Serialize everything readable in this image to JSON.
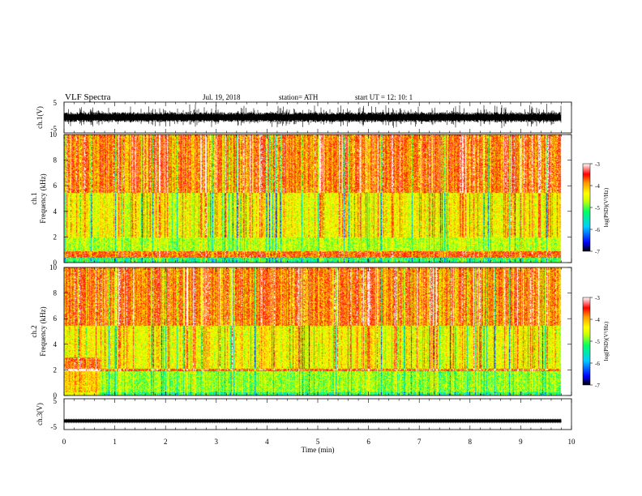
{
  "header": {
    "title": "VLF  Spectra",
    "date": "Jul.  19, 2018",
    "station": "station= ATH",
    "start": "start  UT  =    12: 10: 1"
  },
  "chart_data": [
    {
      "type": "line",
      "panel": "ch1-waveform",
      "ylabel": "ch.1(V)",
      "ylim": [
        -5,
        5
      ],
      "yticks": [
        "5",
        "-5"
      ],
      "xlim": [
        0,
        10
      ],
      "data_end_min": 9.8,
      "typical_amplitude_V": [
        -1.5,
        1.8
      ],
      "peak_amplitude_V": [
        -3.5,
        4.5
      ],
      "grid": false
    },
    {
      "type": "heatmap",
      "panel": "ch1-spectrogram",
      "ylabel": "ch.1\nFrequency (kHz)",
      "xlim": [
        0,
        10
      ],
      "ylim": [
        0,
        10
      ],
      "yticks": [
        "0",
        "2",
        "4",
        "6",
        "8",
        "10"
      ],
      "data_end_min": 9.8,
      "colorbar": {
        "label": "log(PSD)(V²/Hz)",
        "range": [
          -7,
          -3
        ],
        "ticks": [
          "-3",
          "-4",
          "-5",
          "-6",
          "-7"
        ],
        "colormap": [
          "#000000",
          "#0000ff",
          "#00ccff",
          "#00ff66",
          "#ccff00",
          "#ffff00",
          "#ff9900",
          "#ff0000",
          "#ffffff"
        ]
      },
      "bands": [
        {
          "range_kHz": [
            0,
            0.4
          ],
          "log_psd": -5.5
        },
        {
          "range_kHz": [
            0.4,
            0.9
          ],
          "log_psd": -3.8
        },
        {
          "range_kHz": [
            0.9,
            2.0
          ],
          "log_psd": -5.0
        },
        {
          "range_kHz": [
            2.0,
            5.5
          ],
          "log_psd": -4.6
        },
        {
          "range_kHz": [
            5.5,
            10
          ],
          "log_psd": -3.9
        }
      ]
    },
    {
      "type": "heatmap",
      "panel": "ch2-spectrogram",
      "ylabel": "ch.2\nFrequency (kHz)",
      "xlim": [
        0,
        10
      ],
      "ylim": [
        0,
        10
      ],
      "yticks": [
        "0",
        "2",
        "4",
        "6",
        "8",
        "10"
      ],
      "data_end_min": 9.8,
      "colorbar": {
        "label": "log(PSD)(V²/Hz)",
        "range": [
          -7,
          -3
        ],
        "ticks": [
          "-3",
          "-4",
          "-5",
          "-6",
          "-7"
        ],
        "colormap": [
          "#000000",
          "#0000ff",
          "#00ccff",
          "#00ff66",
          "#ccff00",
          "#ffff00",
          "#ff9900",
          "#ff0000",
          "#ffffff"
        ]
      },
      "bands": [
        {
          "range_kHz": [
            0,
            0.3
          ],
          "log_psd": -5.5
        },
        {
          "range_kHz": [
            0.3,
            1.9
          ],
          "log_psd": -5.1
        },
        {
          "range_kHz": [
            1.9,
            2.1
          ],
          "log_psd": -3.6
        },
        {
          "range_kHz": [
            2.1,
            5.5
          ],
          "log_psd": -4.6
        },
        {
          "range_kHz": [
            5.5,
            10
          ],
          "log_psd": -3.9
        }
      ]
    },
    {
      "type": "line",
      "panel": "ch3-waveform",
      "ylabel": "ch.3(V)",
      "ylim": [
        -5,
        5
      ],
      "yticks": [
        "5",
        "-5"
      ],
      "xlim": [
        0,
        10
      ],
      "data_end_min": 9.8,
      "level_V": -2.2,
      "grid": false
    }
  ],
  "x_axis": {
    "label": "Time  (min)",
    "ticks": [
      "0",
      "1",
      "2",
      "3",
      "4",
      "5",
      "6",
      "7",
      "8",
      "9",
      "10"
    ]
  }
}
